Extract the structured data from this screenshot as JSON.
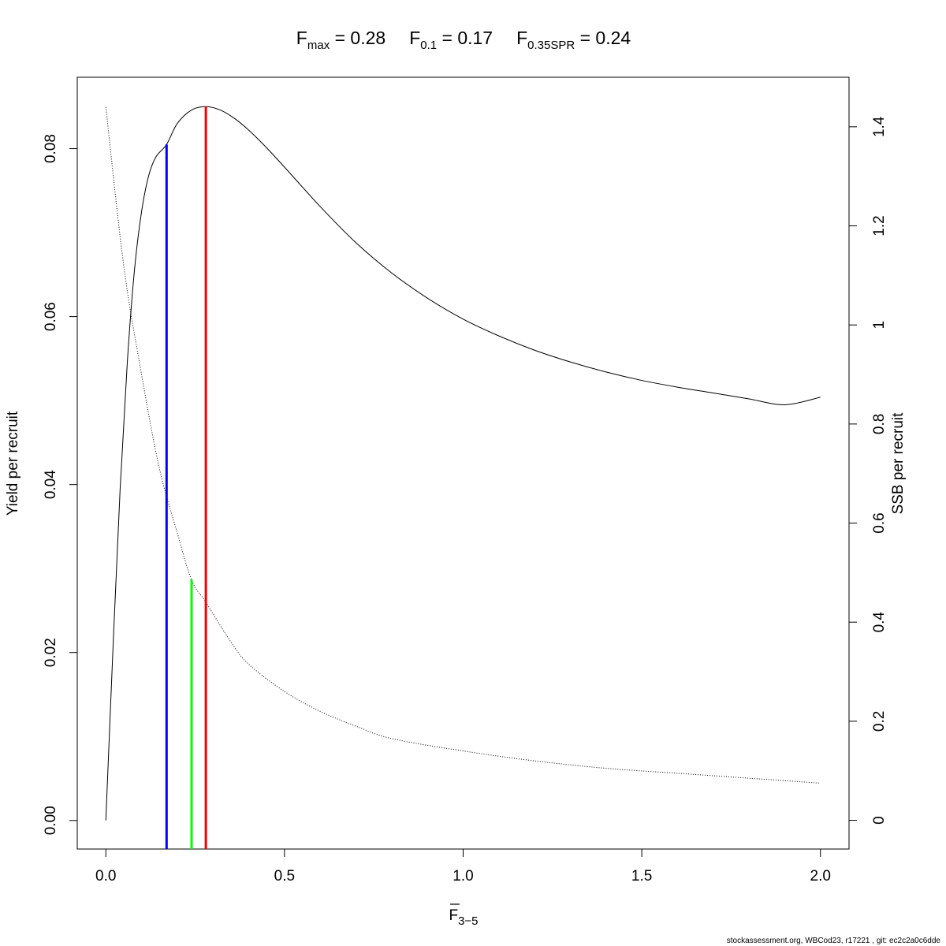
{
  "chart_data": {
    "type": "line",
    "title": {
      "fmax": {
        "main": "F",
        "sub": "max",
        "value": " = 0.28"
      },
      "f01": {
        "main": "F",
        "sub": "0.1",
        "value": " = 0.17"
      },
      "f035": {
        "main": "F",
        "sub": "0.35SPR",
        "value": " = 0.24"
      }
    },
    "xlabel": {
      "main": "F",
      "sub": "3−5"
    },
    "ylabel": "Yield per recruit",
    "y2label": "SSB per recruit",
    "xlim": [
      -0.08,
      2.08
    ],
    "ylim": [
      -0.0034,
      0.0885
    ],
    "y2lim": [
      -0.058,
      1.5
    ],
    "xticks": [
      "0.0",
      "0.5",
      "1.0",
      "1.5",
      "2.0"
    ],
    "xtick_values": [
      0,
      0.5,
      1.0,
      1.5,
      2.0
    ],
    "yticks": [
      "0.00",
      "0.02",
      "0.04",
      "0.06",
      "0.08"
    ],
    "ytick_values": [
      0,
      0.02,
      0.04,
      0.06,
      0.08
    ],
    "y2ticks": [
      "0",
      "0.2",
      "0.4",
      "0.6",
      "0.8",
      "1",
      "1.2",
      "1.4"
    ],
    "y2tick_values": [
      0,
      0.2,
      0.4,
      0.6,
      0.8,
      1.0,
      1.2,
      1.4
    ],
    "series": [
      {
        "axis": "left",
        "style": "solid",
        "color": "#000000",
        "x": [
          0,
          0.02,
          0.04,
          0.06,
          0.08,
          0.1,
          0.12,
          0.14,
          0.17,
          0.2,
          0.24,
          0.28,
          0.32,
          0.36,
          0.4,
          0.45,
          0.5,
          0.6,
          0.7,
          0.8,
          0.9,
          1.0,
          1.1,
          1.2,
          1.3,
          1.4,
          1.5,
          1.6,
          1.7,
          1.8,
          1.9,
          2.0
        ],
        "y": [
          0,
          0.0205,
          0.0395,
          0.0545,
          0.0655,
          0.0725,
          0.0768,
          0.079,
          0.0805,
          0.083,
          0.0846,
          0.085,
          0.0846,
          0.0836,
          0.0822,
          0.0801,
          0.0778,
          0.0731,
          0.0688,
          0.0652,
          0.0622,
          0.0597,
          0.0577,
          0.056,
          0.0546,
          0.0534,
          0.0524,
          0.0516,
          0.0509,
          0.0502,
          0.0495,
          0.0504
        ]
      },
      {
        "axis": "right",
        "style": "dotted",
        "color": "#000000",
        "x": [
          0,
          0.05,
          0.1,
          0.15,
          0.2,
          0.24,
          0.28,
          0.35,
          0.4,
          0.5,
          0.6,
          0.7,
          0.8,
          1.0,
          1.2,
          1.4,
          1.6,
          1.8,
          2.0
        ],
        "y": [
          1.44,
          1.12,
          0.9,
          0.71,
          0.58,
          0.485,
          0.44,
          0.36,
          0.315,
          0.26,
          0.22,
          0.19,
          0.165,
          0.14,
          0.12,
          0.105,
          0.095,
          0.085,
          0.075
        ]
      }
    ],
    "reference_lines": [
      {
        "name": "f01",
        "x": 0.17,
        "y": 0.0805,
        "axis": "left",
        "color": "#0000ff"
      },
      {
        "name": "f035spr",
        "x": 0.24,
        "y": 0.0287,
        "axis": "left",
        "color": "#00ff00"
      },
      {
        "name": "fmax",
        "x": 0.28,
        "y": 0.085,
        "axis": "left",
        "color": "#ff0000"
      }
    ],
    "grid": false,
    "legend": "none"
  },
  "footer": "stockassessment.org, WBCod23, r17221 , git: ec2c2a0c6dde"
}
